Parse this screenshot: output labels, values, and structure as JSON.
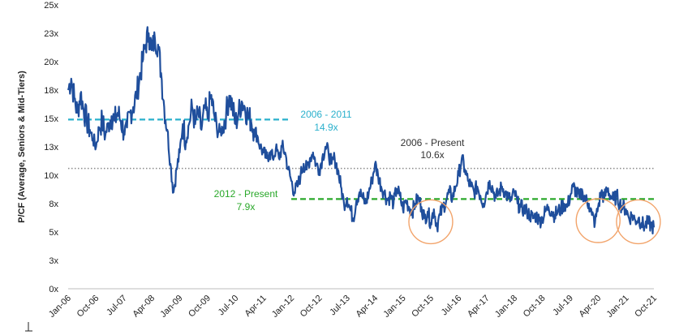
{
  "chart_data": {
    "type": "line",
    "title": "",
    "ylabel": "P/CF (Average, Seniors & Mid-Tiers)",
    "xlabel": "",
    "ylim": [
      0,
      25
    ],
    "x_range": [
      "2006-01",
      "2021-10"
    ],
    "y_ticks": [
      {
        "value": 0,
        "label": "0x"
      },
      {
        "value": 2.5,
        "label": "3x"
      },
      {
        "value": 5,
        "label": "5x"
      },
      {
        "value": 7.5,
        "label": "8x"
      },
      {
        "value": 10,
        "label": "10x"
      },
      {
        "value": 12.5,
        "label": "13x"
      },
      {
        "value": 15,
        "label": "15x"
      },
      {
        "value": 17.5,
        "label": "18x"
      },
      {
        "value": 20,
        "label": "20x"
      },
      {
        "value": 22.5,
        "label": "23x"
      },
      {
        "value": 25,
        "label": "25x"
      }
    ],
    "x_ticks": [
      "Jan-06",
      "Oct-06",
      "Jul-07",
      "Apr-08",
      "Jan-09",
      "Oct-09",
      "Jul-10",
      "Apr-11",
      "Jan-12",
      "Oct-12",
      "Jul-13",
      "Apr-14",
      "Jan-15",
      "Oct-15",
      "Jul-16",
      "Apr-17",
      "Jan-18",
      "Oct-18",
      "Jul-19",
      "Apr-20",
      "Jan-21",
      "Oct-21"
    ],
    "series": [
      {
        "name": "P/CF",
        "color": "#1f4e9c",
        "points": [
          [
            "2006-01",
            17.5
          ],
          [
            "2006-02",
            18.5
          ],
          [
            "2006-03",
            16.8
          ],
          [
            "2006-04",
            15.5
          ],
          [
            "2006-05",
            17.2
          ],
          [
            "2006-06",
            15.8
          ],
          [
            "2006-07",
            14.8
          ],
          [
            "2006-08",
            14.0
          ],
          [
            "2006-09",
            13.2
          ],
          [
            "2006-10",
            12.5
          ],
          [
            "2006-11",
            14.2
          ],
          [
            "2006-12",
            14.8
          ],
          [
            "2007-01",
            13.5
          ],
          [
            "2007-02",
            14.6
          ],
          [
            "2007-03",
            15.2
          ],
          [
            "2007-04",
            14.8
          ],
          [
            "2007-05",
            15.5
          ],
          [
            "2007-06",
            14.8
          ],
          [
            "2007-07",
            13.8
          ],
          [
            "2007-08",
            14.2
          ],
          [
            "2007-09",
            15.5
          ],
          [
            "2007-10",
            16.0
          ],
          [
            "2007-11",
            17.0
          ],
          [
            "2007-12",
            18.5
          ],
          [
            "2008-01",
            20.0
          ],
          [
            "2008-02",
            21.5
          ],
          [
            "2008-03",
            22.5
          ],
          [
            "2008-04",
            21.0
          ],
          [
            "2008-05",
            22.0
          ],
          [
            "2008-06",
            21.5
          ],
          [
            "2008-07",
            19.0
          ],
          [
            "2008-08",
            16.0
          ],
          [
            "2008-09",
            14.0
          ],
          [
            "2008-10",
            11.0
          ],
          [
            "2008-11",
            8.5
          ],
          [
            "2008-12",
            10.5
          ],
          [
            "2009-01",
            12.0
          ],
          [
            "2009-02",
            14.5
          ],
          [
            "2009-03",
            13.0
          ],
          [
            "2009-04",
            14.5
          ],
          [
            "2009-05",
            16.0
          ],
          [
            "2009-06",
            14.5
          ],
          [
            "2009-07",
            15.5
          ],
          [
            "2009-08",
            14.0
          ],
          [
            "2009-09",
            16.0
          ],
          [
            "2009-10",
            15.0
          ],
          [
            "2009-11",
            17.0
          ],
          [
            "2009-12",
            15.5
          ],
          [
            "2010-01",
            14.0
          ],
          [
            "2010-02",
            13.8
          ],
          [
            "2010-03",
            14.2
          ],
          [
            "2010-04",
            15.5
          ],
          [
            "2010-05",
            17.0
          ],
          [
            "2010-06",
            16.0
          ],
          [
            "2010-07",
            14.5
          ],
          [
            "2010-08",
            15.5
          ],
          [
            "2010-09",
            16.5
          ],
          [
            "2010-10",
            16.0
          ],
          [
            "2010-11",
            15.2
          ],
          [
            "2010-12",
            14.8
          ],
          [
            "2011-01",
            14.0
          ],
          [
            "2011-02",
            13.5
          ],
          [
            "2011-03",
            12.5
          ],
          [
            "2011-04",
            12.0
          ],
          [
            "2011-05",
            11.5
          ],
          [
            "2011-06",
            12.0
          ],
          [
            "2011-07",
            11.5
          ],
          [
            "2011-08",
            12.3
          ],
          [
            "2011-09",
            11.5
          ],
          [
            "2011-10",
            12.5
          ],
          [
            "2011-11",
            12.0
          ],
          [
            "2011-12",
            10.5
          ],
          [
            "2012-01",
            9.5
          ],
          [
            "2012-02",
            8.5
          ],
          [
            "2012-03",
            9.0
          ],
          [
            "2012-04",
            10.0
          ],
          [
            "2012-05",
            11.0
          ],
          [
            "2012-06",
            10.5
          ],
          [
            "2012-07",
            11.5
          ],
          [
            "2012-08",
            12.0
          ],
          [
            "2012-09",
            11.0
          ],
          [
            "2012-10",
            10.5
          ],
          [
            "2012-11",
            11.5
          ],
          [
            "2012-12",
            12.5
          ],
          [
            "2013-01",
            12.0
          ],
          [
            "2013-02",
            11.0
          ],
          [
            "2013-03",
            11.5
          ],
          [
            "2013-04",
            10.5
          ],
          [
            "2013-05",
            9.0
          ],
          [
            "2013-06",
            7.5
          ],
          [
            "2013-07",
            8.0
          ],
          [
            "2013-08",
            7.0
          ],
          [
            "2013-09",
            6.2
          ],
          [
            "2013-10",
            7.8
          ],
          [
            "2013-11",
            8.5
          ],
          [
            "2013-12",
            8.0
          ],
          [
            "2014-01",
            7.5
          ],
          [
            "2014-02",
            8.5
          ],
          [
            "2014-03",
            9.5
          ],
          [
            "2014-04",
            11.0
          ],
          [
            "2014-05",
            10.0
          ],
          [
            "2014-06",
            9.0
          ],
          [
            "2014-07",
            8.5
          ],
          [
            "2014-08",
            7.8
          ],
          [
            "2014-09",
            8.2
          ],
          [
            "2014-10",
            7.5
          ],
          [
            "2014-11",
            8.8
          ],
          [
            "2014-12",
            8.2
          ],
          [
            "2015-01",
            7.0
          ],
          [
            "2015-02",
            7.8
          ],
          [
            "2015-03",
            7.2
          ],
          [
            "2015-04",
            6.8
          ],
          [
            "2015-05",
            7.5
          ],
          [
            "2015-06",
            8.0
          ],
          [
            "2015-07",
            7.2
          ],
          [
            "2015-08",
            6.2
          ],
          [
            "2015-09",
            6.8
          ],
          [
            "2015-10",
            5.8
          ],
          [
            "2015-11",
            7.0
          ],
          [
            "2015-12",
            5.5
          ],
          [
            "2016-01",
            6.5
          ],
          [
            "2016-02",
            7.2
          ],
          [
            "2016-03",
            7.8
          ],
          [
            "2016-04",
            8.5
          ],
          [
            "2016-05",
            8.0
          ],
          [
            "2016-06",
            9.0
          ],
          [
            "2016-07",
            10.0
          ],
          [
            "2016-08",
            11.5
          ],
          [
            "2016-09",
            10.5
          ],
          [
            "2016-10",
            9.5
          ],
          [
            "2016-11",
            9.0
          ],
          [
            "2016-12",
            8.5
          ],
          [
            "2017-01",
            9.0
          ],
          [
            "2017-02",
            8.2
          ],
          [
            "2017-03",
            7.5
          ],
          [
            "2017-04",
            8.5
          ],
          [
            "2017-05",
            9.5
          ],
          [
            "2017-06",
            8.8
          ],
          [
            "2017-07",
            8.0
          ],
          [
            "2017-08",
            8.5
          ],
          [
            "2017-09",
            9.0
          ],
          [
            "2017-10",
            8.5
          ],
          [
            "2017-11",
            8.0
          ],
          [
            "2017-12",
            7.8
          ],
          [
            "2018-01",
            8.5
          ],
          [
            "2018-02",
            7.5
          ],
          [
            "2018-03",
            7.2
          ],
          [
            "2018-04",
            7.0
          ],
          [
            "2018-05",
            6.8
          ],
          [
            "2018-06",
            6.5
          ],
          [
            "2018-07",
            6.2
          ],
          [
            "2018-08",
            6.5
          ],
          [
            "2018-09",
            6.0
          ],
          [
            "2018-10",
            6.2
          ],
          [
            "2018-11",
            6.8
          ],
          [
            "2018-12",
            7.2
          ],
          [
            "2019-01",
            6.8
          ],
          [
            "2019-02",
            6.5
          ],
          [
            "2019-03",
            6.8
          ],
          [
            "2019-04",
            7.0
          ],
          [
            "2019-05",
            7.5
          ],
          [
            "2019-06",
            7.2
          ],
          [
            "2019-07",
            8.2
          ],
          [
            "2019-08",
            9.0
          ],
          [
            "2019-09",
            8.5
          ],
          [
            "2019-10",
            8.0
          ],
          [
            "2019-11",
            8.5
          ],
          [
            "2019-12",
            7.8
          ],
          [
            "2020-01",
            7.5
          ],
          [
            "2020-02",
            6.5
          ],
          [
            "2020-03",
            5.8
          ],
          [
            "2020-04",
            7.2
          ],
          [
            "2020-05",
            8.5
          ],
          [
            "2020-06",
            8.0
          ],
          [
            "2020-07",
            8.8
          ],
          [
            "2020-08",
            8.2
          ],
          [
            "2020-09",
            7.8
          ],
          [
            "2020-10",
            8.2
          ],
          [
            "2020-11",
            7.5
          ],
          [
            "2020-12",
            7.2
          ],
          [
            "2021-01",
            7.0
          ],
          [
            "2021-02",
            6.2
          ],
          [
            "2021-03",
            6.5
          ],
          [
            "2021-04",
            6.0
          ],
          [
            "2021-05",
            6.2
          ],
          [
            "2021-06",
            5.8
          ],
          [
            "2021-07",
            5.5
          ],
          [
            "2021-08",
            5.8
          ],
          [
            "2021-09",
            5.6
          ],
          [
            "2021-10",
            5.4
          ]
        ]
      }
    ],
    "reference_lines": [
      {
        "name": "2006 - 2011 average",
        "value": 14.9,
        "from": "2006-01",
        "to": "2011-12",
        "color": "#2ab0cc",
        "style": "dashed"
      },
      {
        "name": "2012 - Present average",
        "value": 7.9,
        "from": "2012-01",
        "to": "2021-10",
        "color": "#2aa82a",
        "style": "dashed"
      },
      {
        "name": "2006 - Present average",
        "value": 10.6,
        "from": "2006-01",
        "to": "2021-10",
        "color": "#8a8a8a",
        "style": "dotted"
      }
    ],
    "annotations": [
      {
        "name": "2006-2011",
        "line1": "2006 - 2011",
        "line2": "14.9x",
        "color": "#2ab0cc"
      },
      {
        "name": "2006-present",
        "line1": "2006 - Present",
        "line2": "10.6x",
        "color": "#333333"
      },
      {
        "name": "2012-present",
        "line1": "2012 - Present",
        "line2": "7.9x",
        "color": "#2aa82a"
      }
    ],
    "highlights": [
      {
        "name": "2015-trough",
        "center": "2015-10",
        "value": 5.9
      },
      {
        "name": "2020-trough",
        "center": "2020-04",
        "value": 6.0
      },
      {
        "name": "2021-trough",
        "center": "2021-05",
        "value": 5.9
      }
    ],
    "highlight_color": "#f2a46b"
  }
}
